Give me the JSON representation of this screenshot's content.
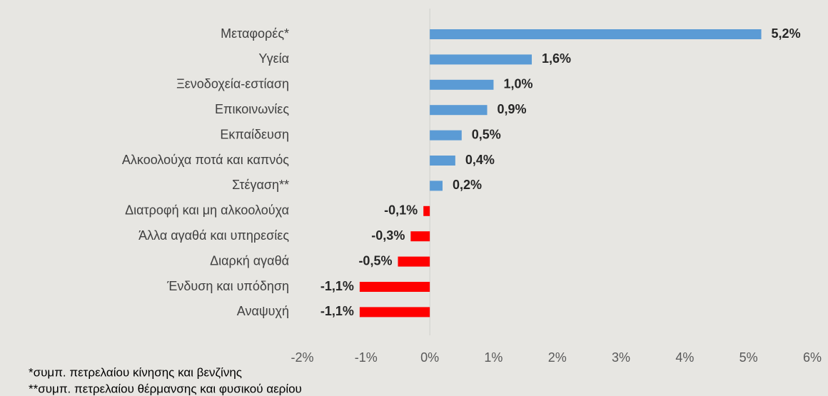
{
  "chart_data": {
    "type": "hbar",
    "categories": [
      "Μεταφορές*",
      "Υγεία",
      "Ξενοδοχεία-εστίαση",
      "Επικοινωνίες",
      "Εκπαίδευση",
      "Αλκοολούχα ποτά και καπνός",
      "Στέγαση**",
      "Διατροφή και μη αλκοολούχα",
      "Άλλα  αγαθά και υπηρεσίες",
      "Διαρκή αγαθά",
      "Ένδυση και υπόδηση",
      "Αναψυχή"
    ],
    "values": [
      5.2,
      1.6,
      1.0,
      0.9,
      0.5,
      0.4,
      0.2,
      -0.1,
      -0.3,
      -0.5,
      -1.1,
      -1.1
    ],
    "value_labels": [
      "5,2%",
      "1,6%",
      "1,0%",
      "0,9%",
      "0,5%",
      "0,4%",
      "0,2%",
      "-0,1%",
      "-0,3%",
      "-0,5%",
      "-1,1%",
      "-1,1%"
    ],
    "color_positive": "#5b9bd5",
    "color_negative": "#ff0000",
    "xlim": [
      -2,
      6
    ],
    "xticks": [
      {
        "value": -2,
        "label": "-2%"
      },
      {
        "value": -1,
        "label": "-1%"
      },
      {
        "value": 0,
        "label": "0%"
      },
      {
        "value": 1,
        "label": "1%"
      },
      {
        "value": 2,
        "label": "2%"
      },
      {
        "value": 3,
        "label": "3%"
      },
      {
        "value": 4,
        "label": "4%"
      },
      {
        "value": 5,
        "label": "5%"
      },
      {
        "value": 6,
        "label": "6%"
      }
    ],
    "footnotes": [
      "*συμπ. πετρελαίου κίνησης και βενζίνης",
      "**συμπ. πετρελαίου θέρμανσης και φυσικού αερίου"
    ]
  }
}
